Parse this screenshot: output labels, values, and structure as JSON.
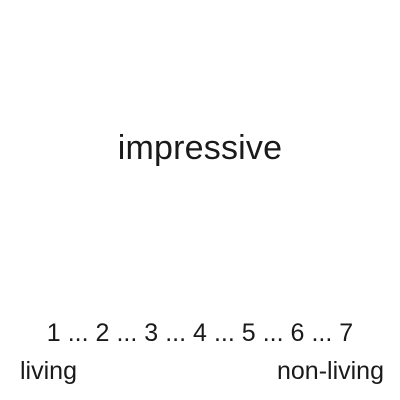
{
  "stimulus": {
    "word": "impressive"
  },
  "scale": {
    "points": [
      "1",
      "2",
      "3",
      "4",
      "5",
      "6",
      "7"
    ],
    "separator": "...",
    "left_anchor": "living",
    "right_anchor": "non-living"
  },
  "colors": {
    "background": "#ffffff",
    "text": "#1a1a1a"
  }
}
